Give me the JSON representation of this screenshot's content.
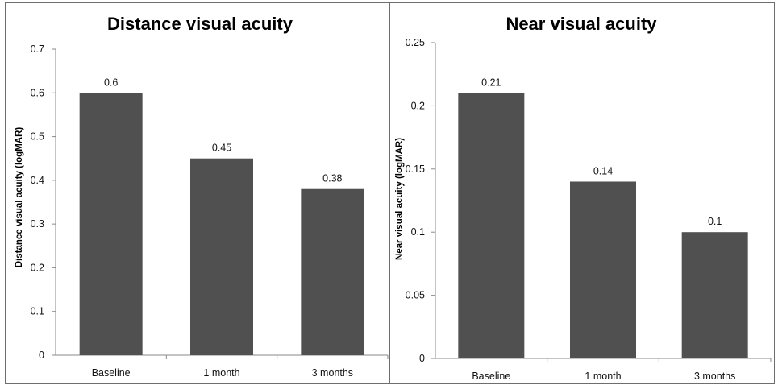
{
  "chart_data": [
    {
      "type": "bar",
      "title": "Distance visual acuity",
      "ylabel": "Distance visual acuity (logMAR)",
      "categories": [
        "Baseline",
        "1 month",
        "3 months"
      ],
      "values": [
        0.6,
        0.45,
        0.38
      ],
      "value_labels": [
        "0.6",
        "0.45",
        "0.38"
      ],
      "ylim": [
        0,
        0.7
      ],
      "yticks": [
        "0",
        "0.1",
        "0.2",
        "0.3",
        "0.4",
        "0.5",
        "0.6",
        "0.7"
      ],
      "bar_color": "#505050",
      "grid": false
    },
    {
      "type": "bar",
      "title": "Near visual acuity",
      "ylabel": "Near visual acuity (logMAR)",
      "categories": [
        "Baseline",
        "1 month",
        "3 months"
      ],
      "values": [
        0.21,
        0.14,
        0.1
      ],
      "value_labels": [
        "0.21",
        "0.14",
        "0.1"
      ],
      "ylim": [
        0,
        0.25
      ],
      "yticks": [
        "0",
        "0.05",
        "0.1",
        "0.15",
        "0.2",
        "0.25"
      ],
      "bar_color": "#505050",
      "grid": false
    }
  ]
}
